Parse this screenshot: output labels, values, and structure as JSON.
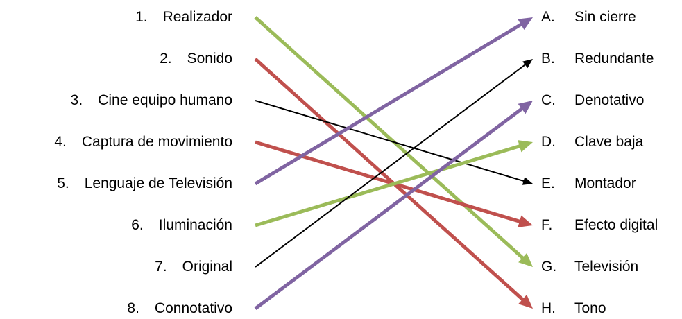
{
  "left_items": [
    {
      "number": "1.",
      "label": "Realizador"
    },
    {
      "number": "2.",
      "label": "Sonido"
    },
    {
      "number": "3.",
      "label": "Cine equipo humano"
    },
    {
      "number": "4.",
      "label": "Captura de movimiento"
    },
    {
      "number": "5.",
      "label": "Lenguaje de Televisión"
    },
    {
      "number": "6.",
      "label": "Iluminación"
    },
    {
      "number": "7.",
      "label": "Original"
    },
    {
      "number": "8.",
      "label": "Connotativo"
    }
  ],
  "right_items": [
    {
      "letter": "A.",
      "label": "Sin cierre"
    },
    {
      "letter": "B.",
      "label": "Redundante"
    },
    {
      "letter": "C.",
      "label": "Denotativo"
    },
    {
      "letter": "D.",
      "label": "Clave baja"
    },
    {
      "letter": "E.",
      "label": "Montador"
    },
    {
      "letter": "F.",
      "label": "Efecto digital"
    },
    {
      "letter": "G.",
      "label": "Televisión"
    },
    {
      "letter": "H.",
      "label": "Tono"
    }
  ],
  "connections": [
    {
      "from": 1,
      "to": "G",
      "color": "#9BBB59",
      "style": "thick"
    },
    {
      "from": 2,
      "to": "H",
      "color": "#C0504D",
      "style": "thick"
    },
    {
      "from": 3,
      "to": "E",
      "color": "#000000",
      "style": "thin"
    },
    {
      "from": 4,
      "to": "F",
      "color": "#C0504D",
      "style": "thick"
    },
    {
      "from": 5,
      "to": "A",
      "color": "#8064A2",
      "style": "thick"
    },
    {
      "from": 6,
      "to": "D",
      "color": "#9BBB59",
      "style": "thick"
    },
    {
      "from": 7,
      "to": "B",
      "color": "#000000",
      "style": "thin"
    },
    {
      "from": 8,
      "to": "C",
      "color": "#8064A2",
      "style": "thick"
    }
  ]
}
